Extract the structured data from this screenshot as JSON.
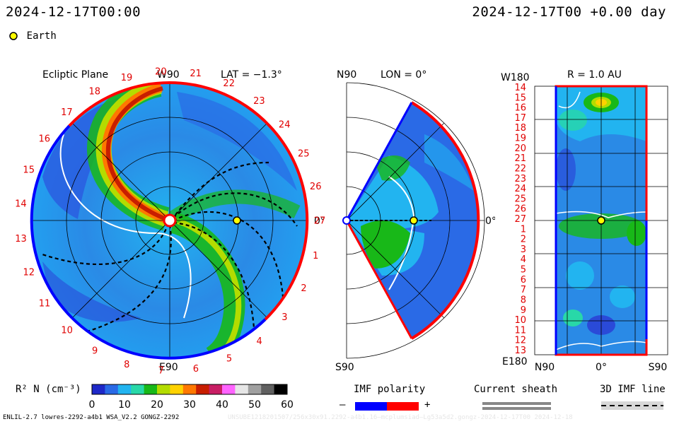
{
  "header": {
    "datetime": "2024-12-17T00:00",
    "offset": "2024-12-17T00 +0.00 day"
  },
  "legend": {
    "earth_label": "Earth",
    "earth_color": "#ffff00"
  },
  "ecliptic": {
    "title": "Ecliptic Plane",
    "w90": "W90",
    "lat": "LAT = −1.3°",
    "e90": "E90",
    "zero": "0°",
    "carrington_ticks": [
      "1",
      "2",
      "3",
      "4",
      "5",
      "6",
      "7",
      "8",
      "9",
      "10",
      "11",
      "12",
      "13",
      "14",
      "15",
      "16",
      "17",
      "18",
      "19",
      "20",
      "21",
      "22",
      "23",
      "24",
      "25",
      "26",
      "27"
    ]
  },
  "meridional": {
    "n90": "N90",
    "lon": "LON = 0°",
    "s90": "S90",
    "zero": "0°"
  },
  "map": {
    "w180": "W180",
    "radius": "R = 1.0 AU",
    "e180": "E180",
    "y_labels": [
      "14",
      "15",
      "16",
      "17",
      "18",
      "19",
      "20",
      "21",
      "22",
      "23",
      "24",
      "25",
      "26",
      "27",
      "1",
      "2",
      "3",
      "4",
      "5",
      "6",
      "7",
      "8",
      "9",
      "10",
      "11",
      "12",
      "13"
    ],
    "x_labels": [
      "N90",
      "0°",
      "S90"
    ]
  },
  "colorbar": {
    "label": "R² N (cm⁻³)",
    "ticks": [
      "0",
      "10",
      "20",
      "30",
      "40",
      "50",
      "60"
    ],
    "colors": [
      "#1e28c8",
      "#2a6ae6",
      "#22b4f0",
      "#28d8a8",
      "#18b818",
      "#b4dc00",
      "#ffd200",
      "#ff7800",
      "#c81e00",
      "#c81e64",
      "#ff64ff",
      "#e6e6e6",
      "#a0a0a0",
      "#606060",
      "#000000"
    ]
  },
  "imf_polarity": {
    "label": "IMF polarity",
    "neg": "–",
    "pos": "+",
    "neg_color": "#0000ff",
    "pos_color": "#ff0000"
  },
  "current_sheath": {
    "label": "Current sheath"
  },
  "imf_line": {
    "label": "3D IMF line"
  },
  "footer": {
    "left": "ENLIL-2.7 lowres-2292-a4b1 WSA_V2.2 GONGZ-2292",
    "right": "UNSUBE1218201507/256x30x91.2292-a4b1.16—mcplumsiad—Lg53a5d2.gongz-2024-12-17T00   2024-12-18"
  }
}
